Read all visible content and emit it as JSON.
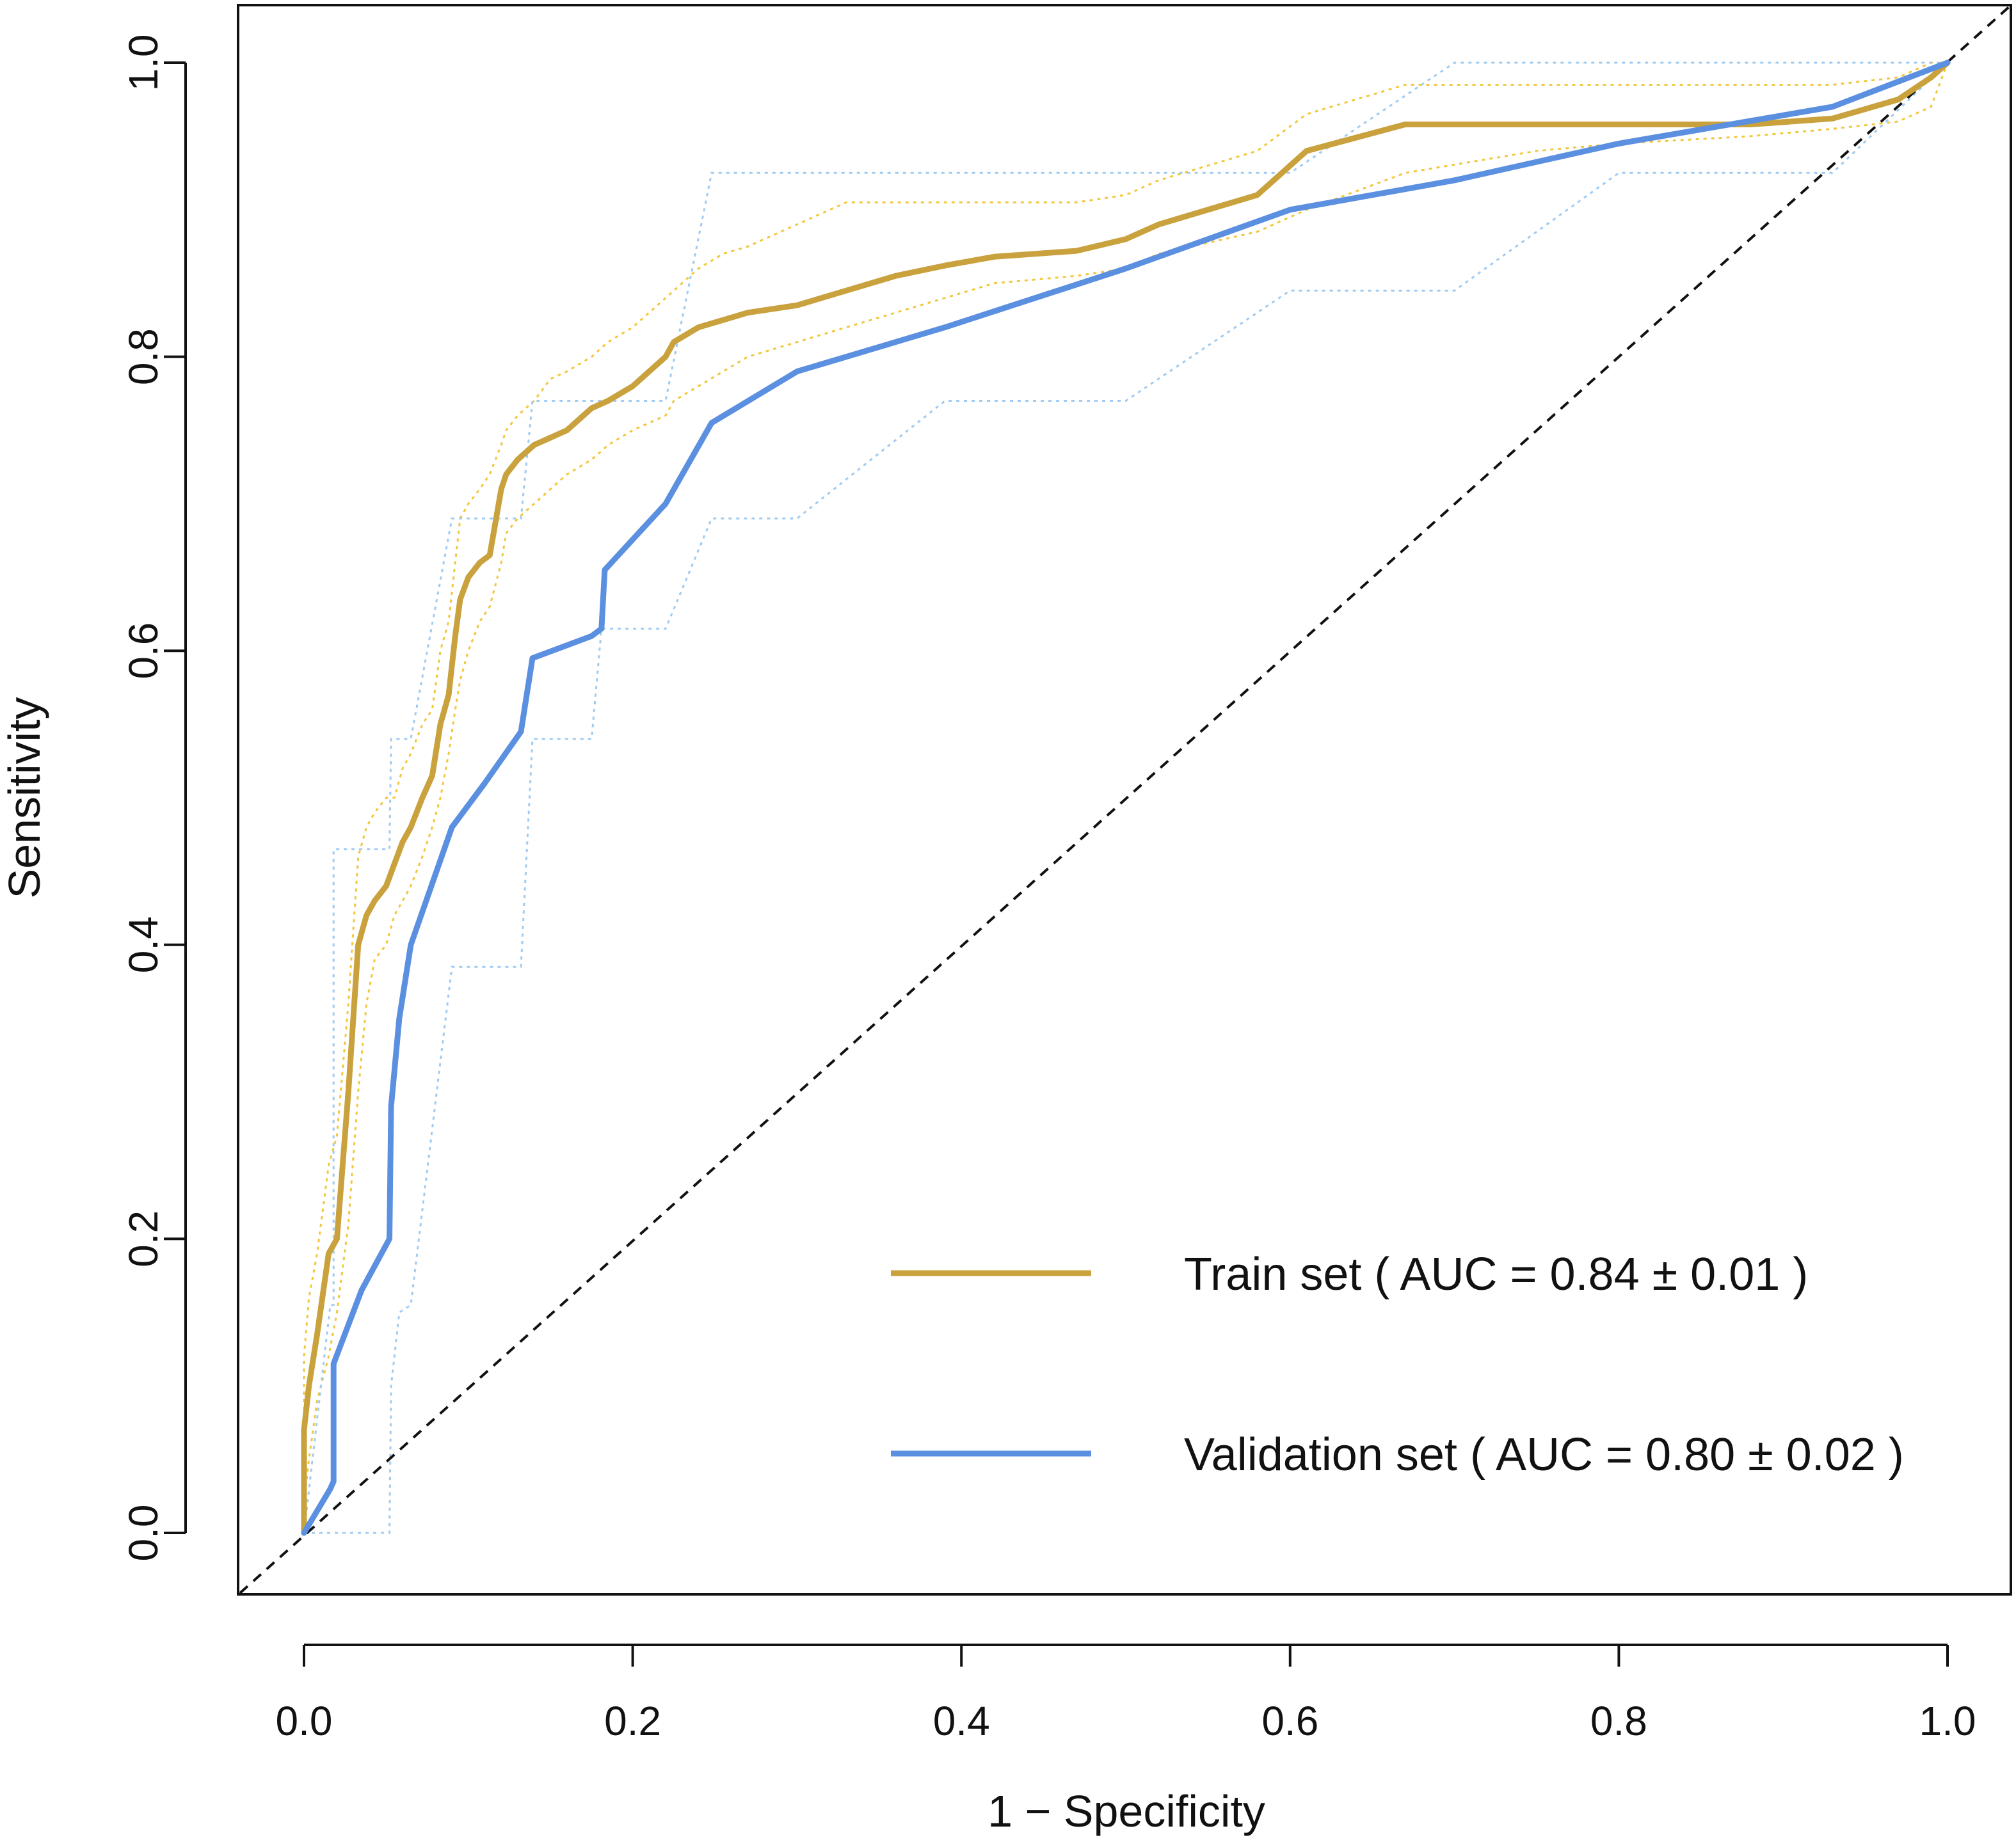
{
  "chart_data": {
    "type": "line",
    "title": "",
    "xlabel": "1 − Specificity",
    "ylabel": "Sensitivity",
    "xlim": [
      0.0,
      1.0
    ],
    "ylim": [
      0.0,
      1.0
    ],
    "xticks": [
      "0.0",
      "0.2",
      "0.4",
      "0.6",
      "0.8",
      "1.0"
    ],
    "yticks": [
      "0.0",
      "0.2",
      "0.4",
      "0.6",
      "0.8",
      "1.0"
    ],
    "legend_position": "bottom-right",
    "diagonal_reference": true,
    "series": [
      {
        "name": "Train set",
        "legend_label": "Train set ( AUC = 0.84 ± 0.01 )",
        "color": "#c9a13d",
        "band_color": "#f2c73b",
        "x": [
          0.0,
          0.0,
          0.003,
          0.008,
          0.015,
          0.02,
          0.027,
          0.033,
          0.038,
          0.043,
          0.05,
          0.055,
          0.06,
          0.065,
          0.072,
          0.078,
          0.083,
          0.088,
          0.092,
          0.095,
          0.1,
          0.107,
          0.113,
          0.12,
          0.123,
          0.13,
          0.14,
          0.15,
          0.16,
          0.175,
          0.185,
          0.2,
          0.22,
          0.225,
          0.24,
          0.255,
          0.27,
          0.3,
          0.33,
          0.36,
          0.39,
          0.42,
          0.47,
          0.5,
          0.52,
          0.58,
          0.61,
          0.67,
          0.75,
          0.8,
          0.88,
          0.93,
          0.97,
          0.99,
          1.0
        ],
        "y": [
          0.0,
          0.07,
          0.1,
          0.135,
          0.19,
          0.2,
          0.3,
          0.4,
          0.42,
          0.43,
          0.44,
          0.455,
          0.47,
          0.48,
          0.5,
          0.515,
          0.55,
          0.57,
          0.61,
          0.635,
          0.65,
          0.66,
          0.665,
          0.71,
          0.72,
          0.73,
          0.74,
          0.745,
          0.75,
          0.765,
          0.77,
          0.78,
          0.8,
          0.81,
          0.82,
          0.825,
          0.83,
          0.835,
          0.845,
          0.855,
          0.862,
          0.868,
          0.872,
          0.88,
          0.89,
          0.91,
          0.94,
          0.958,
          0.958,
          0.958,
          0.958,
          0.962,
          0.975,
          0.99,
          1.0
        ],
        "band_lower": [
          0.0,
          0.02,
          0.05,
          0.09,
          0.12,
          0.15,
          0.21,
          0.3,
          0.36,
          0.39,
          0.4,
          0.42,
          0.43,
          0.44,
          0.46,
          0.48,
          0.5,
          0.53,
          0.56,
          0.58,
          0.6,
          0.62,
          0.63,
          0.66,
          0.68,
          0.69,
          0.7,
          0.71,
          0.72,
          0.73,
          0.74,
          0.75,
          0.76,
          0.77,
          0.78,
          0.79,
          0.8,
          0.81,
          0.82,
          0.83,
          0.84,
          0.85,
          0.855,
          0.86,
          0.87,
          0.885,
          0.9,
          0.925,
          0.94,
          0.945,
          0.95,
          0.955,
          0.96,
          0.97,
          1.0
        ],
        "band_upper": [
          0.0,
          0.12,
          0.16,
          0.19,
          0.25,
          0.27,
          0.36,
          0.46,
          0.48,
          0.49,
          0.5,
          0.5,
          0.52,
          0.53,
          0.55,
          0.56,
          0.6,
          0.62,
          0.66,
          0.69,
          0.7,
          0.71,
          0.72,
          0.74,
          0.75,
          0.76,
          0.77,
          0.785,
          0.79,
          0.8,
          0.81,
          0.82,
          0.84,
          0.845,
          0.86,
          0.87,
          0.875,
          0.89,
          0.905,
          0.905,
          0.905,
          0.905,
          0.905,
          0.91,
          0.92,
          0.94,
          0.965,
          0.985,
          0.985,
          0.985,
          0.985,
          0.985,
          0.99,
          1.0,
          1.0
        ]
      },
      {
        "name": "Validation set",
        "legend_label": "Validation set ( AUC = 0.80 ± 0.02 )",
        "color": "#5b8fe0",
        "band_color": "#9fcbf2",
        "x": [
          0.0,
          0.016,
          0.018,
          0.018,
          0.035,
          0.052,
          0.053,
          0.058,
          0.065,
          0.09,
          0.11,
          0.132,
          0.139,
          0.175,
          0.181,
          0.183,
          0.22,
          0.248,
          0.3,
          0.39,
          0.5,
          0.6,
          0.7,
          0.8,
          0.93,
          1.0
        ],
        "y": [
          0.0,
          0.03,
          0.035,
          0.115,
          0.165,
          0.2,
          0.29,
          0.35,
          0.4,
          0.48,
          0.51,
          0.545,
          0.595,
          0.61,
          0.615,
          0.655,
          0.7,
          0.755,
          0.79,
          0.82,
          0.86,
          0.9,
          0.92,
          0.945,
          0.97,
          1.0
        ],
        "band_lower": [
          0.0,
          0.0,
          0.0,
          0.0,
          0.0,
          0.0,
          0.1,
          0.15,
          0.155,
          0.385,
          0.385,
          0.385,
          0.54,
          0.54,
          0.615,
          0.615,
          0.615,
          0.69,
          0.69,
          0.77,
          0.77,
          0.845,
          0.845,
          0.925,
          0.925,
          1.0
        ],
        "band_upper": [
          0.0,
          0.155,
          0.155,
          0.465,
          0.465,
          0.465,
          0.54,
          0.54,
          0.54,
          0.69,
          0.69,
          0.69,
          0.77,
          0.77,
          0.77,
          0.77,
          0.77,
          0.925,
          0.925,
          0.925,
          0.925,
          0.925,
          1.0,
          1.0,
          1.0,
          1.0
        ]
      }
    ]
  }
}
